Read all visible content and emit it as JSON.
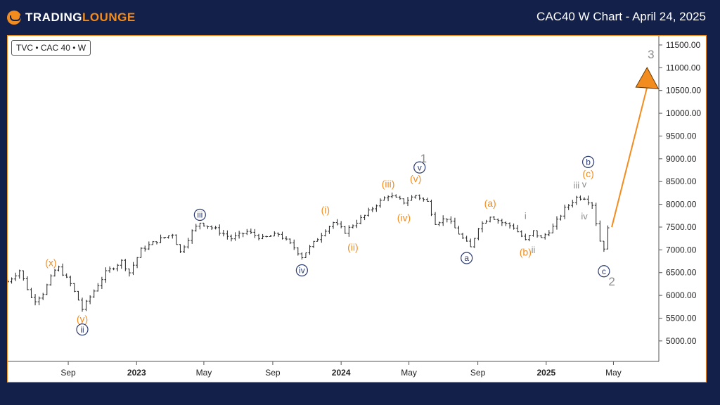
{
  "header": {
    "logo_prefix": "TRADING",
    "logo_suffix": "LOUNGE",
    "logo_icon": "trading-lounge-logo-icon",
    "title": "CAC40 W Chart - April 24, 2025"
  },
  "symbol_label": "TVC • CAC 40 • W",
  "colors": {
    "background": "#13204a",
    "orange": "#f28c1e",
    "navy": "#2a3a6e",
    "gray": "#8c8c8c",
    "candle": "#222222"
  },
  "chart_data": {
    "type": "line",
    "x_axis": {
      "labels": [
        "Sep",
        "2023",
        "May",
        "Sep",
        "2024",
        "May",
        "Sep",
        "2025",
        "May"
      ],
      "label_dates": [
        "2022-09-01",
        "2023-01-01",
        "2023-05-01",
        "2023-09-01",
        "2024-01-01",
        "2024-05-01",
        "2024-09-01",
        "2025-01-01",
        "2025-05-01"
      ],
      "range": [
        "2022-05-16",
        "2025-07-21"
      ]
    },
    "y_axis": {
      "ticks": [
        5000,
        5500,
        6000,
        6500,
        7000,
        7500,
        8000,
        8500,
        9000,
        9500,
        10000,
        10500,
        11000,
        11500
      ],
      "tick_labels": [
        "5000.00",
        "5500.00",
        "6000.00",
        "6500.00",
        "7000.00",
        "7500.00",
        "8000.00",
        "8500.00",
        "9000.00",
        "9500.00",
        "10000.00",
        "10500.00",
        "11000.00",
        "11500.00"
      ],
      "range": [
        4550,
        11700
      ]
    },
    "series": [
      {
        "price_path": [
          [
            "2022-05-16",
            6300
          ],
          [
            "2022-06-06",
            6550
          ],
          [
            "2022-06-27",
            5950
          ],
          [
            "2022-07-04",
            5900
          ],
          [
            "2022-07-18",
            6050
          ],
          [
            "2022-08-08",
            6550
          ],
          [
            "2022-08-15",
            6600
          ],
          [
            "2022-09-05",
            6250
          ],
          [
            "2022-09-19",
            5900
          ],
          [
            "2022-09-26",
            5700
          ],
          [
            "2022-10-17",
            6100
          ],
          [
            "2022-11-07",
            6500
          ],
          [
            "2022-12-05",
            6750
          ],
          [
            "2022-12-19",
            6500
          ],
          [
            "2023-01-09",
            7000
          ],
          [
            "2023-02-06",
            7200
          ],
          [
            "2023-03-06",
            7350
          ],
          [
            "2023-03-20",
            6950
          ],
          [
            "2023-04-10",
            7400
          ],
          [
            "2023-04-24",
            7600
          ],
          [
            "2023-05-22",
            7450
          ],
          [
            "2023-06-19",
            7250
          ],
          [
            "2023-07-17",
            7400
          ],
          [
            "2023-08-14",
            7250
          ],
          [
            "2023-09-11",
            7350
          ],
          [
            "2023-10-09",
            7050
          ],
          [
            "2023-10-23",
            6850
          ],
          [
            "2023-11-06",
            7050
          ],
          [
            "2023-12-04",
            7450
          ],
          [
            "2023-12-18",
            7600
          ],
          [
            "2024-01-08",
            7400
          ],
          [
            "2024-01-22",
            7550
          ],
          [
            "2024-02-12",
            7750
          ],
          [
            "2024-03-04",
            8000
          ],
          [
            "2024-03-25",
            8200
          ],
          [
            "2024-04-22",
            8050
          ],
          [
            "2024-05-13",
            8200
          ],
          [
            "2024-06-03",
            8050
          ],
          [
            "2024-06-17",
            7600
          ],
          [
            "2024-07-08",
            7700
          ],
          [
            "2024-08-05",
            7250
          ],
          [
            "2024-08-19",
            7050
          ],
          [
            "2024-09-02",
            7500
          ],
          [
            "2024-09-23",
            7750
          ],
          [
            "2024-10-14",
            7600
          ],
          [
            "2024-11-04",
            7500
          ],
          [
            "2024-11-25",
            7200
          ],
          [
            "2024-12-09",
            7400
          ],
          [
            "2024-12-23",
            7250
          ],
          [
            "2025-01-13",
            7500
          ],
          [
            "2025-02-03",
            7900
          ],
          [
            "2025-02-24",
            8150
          ],
          [
            "2025-03-10",
            8150
          ],
          [
            "2025-03-24",
            8000
          ],
          [
            "2025-04-07",
            7200
          ],
          [
            "2025-04-14",
            7050
          ],
          [
            "2025-04-21",
            7450
          ]
        ]
      }
    ],
    "projection": {
      "from": [
        "2025-04-28",
        7500
      ],
      "to": [
        "2025-06-30",
        10850
      ]
    },
    "annotations": [
      {
        "text": "(x)",
        "style": "orange",
        "date": "2022-08-01",
        "price": 6720
      },
      {
        "text": "(y)",
        "style": "orange",
        "date": "2022-09-26",
        "price": 5480
      },
      {
        "text": "ii",
        "style": "navy-circle",
        "date": "2022-09-26",
        "price": 5250
      },
      {
        "text": "iii",
        "style": "navy-circle",
        "date": "2023-04-24",
        "price": 7770
      },
      {
        "text": "iv",
        "style": "navy-circle",
        "date": "2023-10-23",
        "price": 6550
      },
      {
        "text": "(i)",
        "style": "orange",
        "date": "2023-12-04",
        "price": 7880
      },
      {
        "text": "(ii)",
        "style": "orange",
        "date": "2024-01-22",
        "price": 7060
      },
      {
        "text": "(iii)",
        "style": "orange",
        "date": "2024-03-25",
        "price": 8450
      },
      {
        "text": "(iv)",
        "style": "orange",
        "date": "2024-04-22",
        "price": 7710
      },
      {
        "text": "(v)",
        "style": "orange",
        "date": "2024-05-13",
        "price": 8560
      },
      {
        "text": "v",
        "style": "navy-circle",
        "date": "2024-05-20",
        "price": 8810
      },
      {
        "text": "1",
        "style": "gray-large",
        "date": "2024-05-27",
        "price": 9010
      },
      {
        "text": "a",
        "style": "navy-circle",
        "date": "2024-08-12",
        "price": 6820
      },
      {
        "text": "(a)",
        "style": "orange",
        "date": "2024-09-23",
        "price": 8020
      },
      {
        "text": "i",
        "style": "gray",
        "date": "2024-11-25",
        "price": 7750
      },
      {
        "text": "(b)",
        "style": "orange",
        "date": "2024-11-25",
        "price": 6950
      },
      {
        "text": "ii",
        "style": "gray",
        "date": "2024-12-09",
        "price": 7000
      },
      {
        "text": "iii",
        "style": "gray",
        "date": "2025-02-24",
        "price": 8420
      },
      {
        "text": "v",
        "style": "gray",
        "date": "2025-03-10",
        "price": 8440
      },
      {
        "text": "iv",
        "style": "gray",
        "date": "2025-03-10",
        "price": 7740
      },
      {
        "text": "(c)",
        "style": "orange",
        "date": "2025-03-17",
        "price": 8670
      },
      {
        "text": "b",
        "style": "navy-circle",
        "date": "2025-03-17",
        "price": 8930
      },
      {
        "text": "c",
        "style": "navy-circle",
        "date": "2025-04-14",
        "price": 6530
      },
      {
        "text": "2",
        "style": "gray-large",
        "date": "2025-04-28",
        "price": 6310
      },
      {
        "text": "3",
        "style": "gray-large",
        "date": "2025-07-07",
        "price": 11300
      }
    ]
  }
}
